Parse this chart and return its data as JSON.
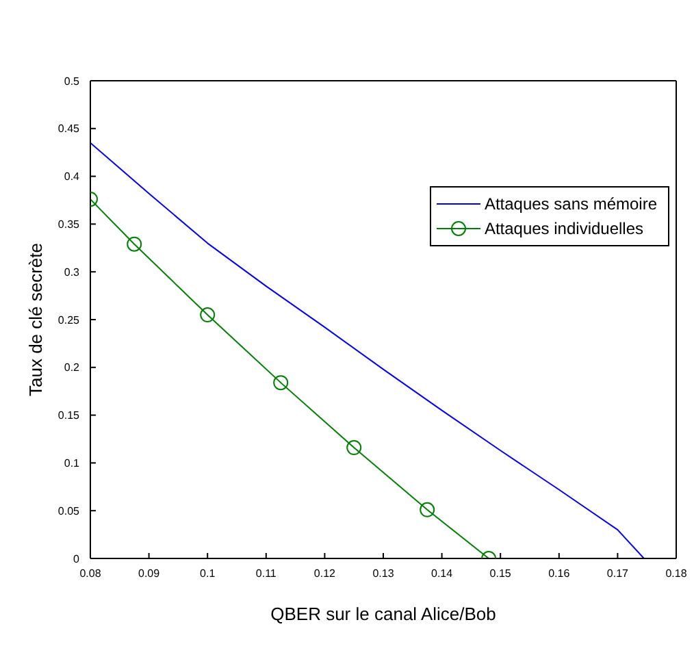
{
  "chart_data": {
    "type": "line",
    "xlabel": "QBER sur le canal Alice/Bob",
    "ylabel": "Taux de clé secrète",
    "xlim": [
      0.08,
      0.18
    ],
    "xticks": [
      0.08,
      0.09,
      0.1,
      0.11,
      0.12,
      0.13,
      0.14,
      0.15,
      0.16,
      0.17,
      0.18
    ],
    "ylim": [
      0,
      0.5
    ],
    "yticks": [
      0,
      0.05,
      0.1,
      0.15,
      0.2,
      0.25,
      0.3,
      0.35,
      0.4,
      0.45,
      0.5
    ],
    "grid": false,
    "legend": "top right",
    "series": [
      {
        "name": "Attaques sans mémoire",
        "color": "#0000ff",
        "marker": "none",
        "x": [
          0.08,
          0.09,
          0.1,
          0.11,
          0.12,
          0.13,
          0.14,
          0.15,
          0.16,
          0.17,
          0.1745
        ],
        "values": [
          0.435,
          0.382,
          0.33,
          0.285,
          0.242,
          0.198,
          0.155,
          0.113,
          0.072,
          0.03,
          0
        ]
      },
      {
        "name": "Attaques individuelles",
        "color": "#008000",
        "marker": "circle",
        "x": [
          0.08,
          0.0875,
          0.1,
          0.1125,
          0.125,
          0.1375,
          0.148
        ],
        "values": [
          0.376,
          0.329,
          0.255,
          0.184,
          0.116,
          0.051,
          0
        ]
      }
    ]
  }
}
